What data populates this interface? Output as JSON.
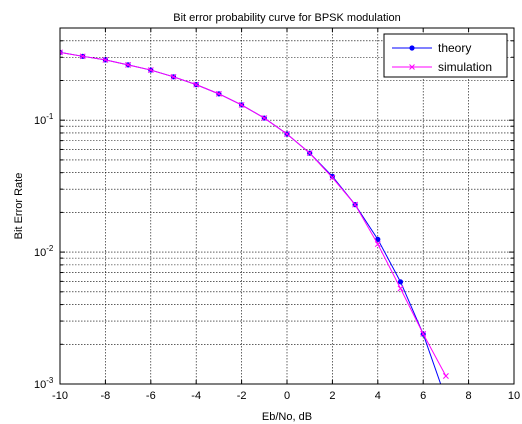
{
  "chart_data": {
    "type": "line",
    "title": "Bit error probability curve for BPSK modulation",
    "xlabel": "Eb/No, dB",
    "ylabel": "Bit Error Rate",
    "xlim": [
      -10,
      10
    ],
    "ylim": [
      0.001,
      0.5
    ],
    "yscale": "log",
    "grid": true,
    "legend_position": "top-right",
    "x_ticks": [
      "-10",
      "-8",
      "-6",
      "-4",
      "-2",
      "0",
      "2",
      "4",
      "6",
      "8",
      "10"
    ],
    "y_ticks": [
      {
        "base": "10",
        "exp": "-1",
        "value": 0.1
      },
      {
        "base": "10",
        "exp": "-2",
        "value": 0.01
      },
      {
        "base": "10",
        "exp": "-3",
        "value": 0.001
      }
    ],
    "series": [
      {
        "name": "theory",
        "color": "#0000ff",
        "marker": "dot",
        "x": [
          -10,
          -9,
          -8,
          -7,
          -6,
          -5,
          -4,
          -3,
          -2,
          -1,
          0,
          1,
          2,
          3,
          4,
          5,
          6,
          7
        ],
        "y": [
          0.327,
          0.305,
          0.2865,
          0.2627,
          0.2399,
          0.2132,
          0.1861,
          0.1584,
          0.1306,
          0.1038,
          0.0786,
          0.0563,
          0.0375,
          0.0229,
          0.0125,
          0.00595,
          0.00239,
          0.00077
        ]
      },
      {
        "name": "simulation",
        "color": "#ff00ff",
        "marker": "x",
        "x": [
          -10,
          -9,
          -8,
          -7,
          -6,
          -5,
          -4,
          -3,
          -2,
          -1,
          0,
          1,
          2,
          3,
          4,
          5,
          6,
          7
        ],
        "y": [
          0.327,
          0.305,
          0.2865,
          0.2627,
          0.2399,
          0.2132,
          0.1861,
          0.1584,
          0.1306,
          0.1038,
          0.0786,
          0.0563,
          0.0367,
          0.0229,
          0.0115,
          0.0053,
          0.0024,
          0.00115
        ]
      }
    ]
  }
}
